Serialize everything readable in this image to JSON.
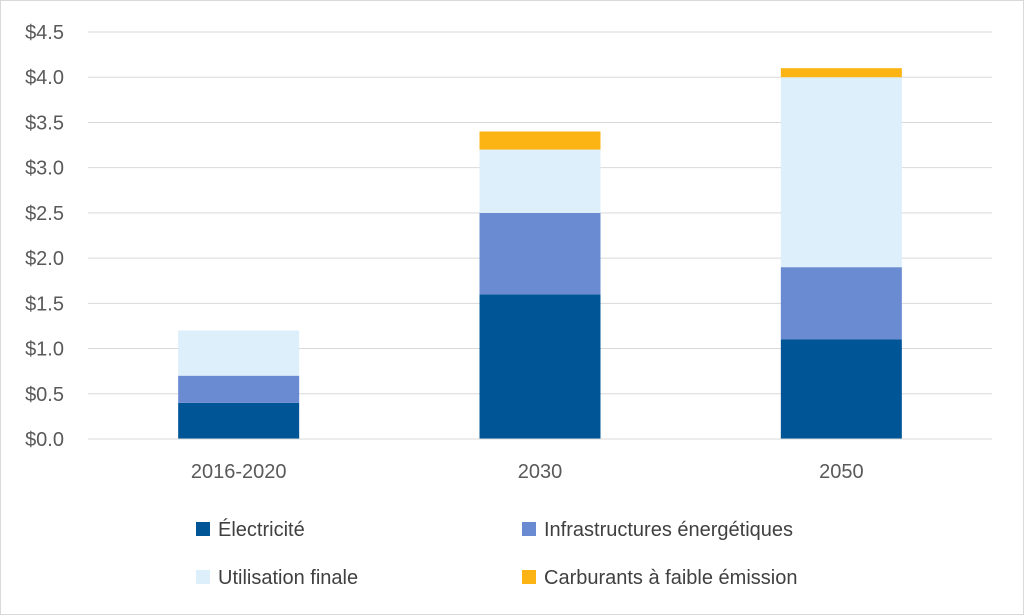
{
  "chart_data": {
    "type": "bar",
    "stacked": true,
    "title": "",
    "xlabel": "",
    "ylabel": "",
    "categories": [
      "2016-2020",
      "2030",
      "2050"
    ],
    "series": [
      {
        "name": "Électricité",
        "color": "#005596",
        "values": [
          0.4,
          1.6,
          1.1
        ]
      },
      {
        "name": "Infrastructures énergétiques",
        "color": "#6a8bd1",
        "values": [
          0.3,
          0.9,
          0.8
        ]
      },
      {
        "name": "Utilisation finale",
        "color": "#ddeffb",
        "values": [
          0.5,
          0.7,
          2.1
        ]
      },
      {
        "name": "Carburants à faible émission",
        "color": "#fcb415",
        "values": [
          0.0,
          0.2,
          0.1
        ]
      }
    ],
    "ylim": [
      0,
      4.5
    ],
    "yticks": [
      "$0.0",
      "$0.5",
      "$1.0",
      "$1.5",
      "$2.0",
      "$2.5",
      "$3.0",
      "$3.5",
      "$4.0",
      "$4.5"
    ],
    "ytick_values": [
      0,
      0.5,
      1.0,
      1.5,
      2.0,
      2.5,
      3.0,
      3.5,
      4.0,
      4.5
    ],
    "grid": true,
    "legend_position": "bottom"
  }
}
